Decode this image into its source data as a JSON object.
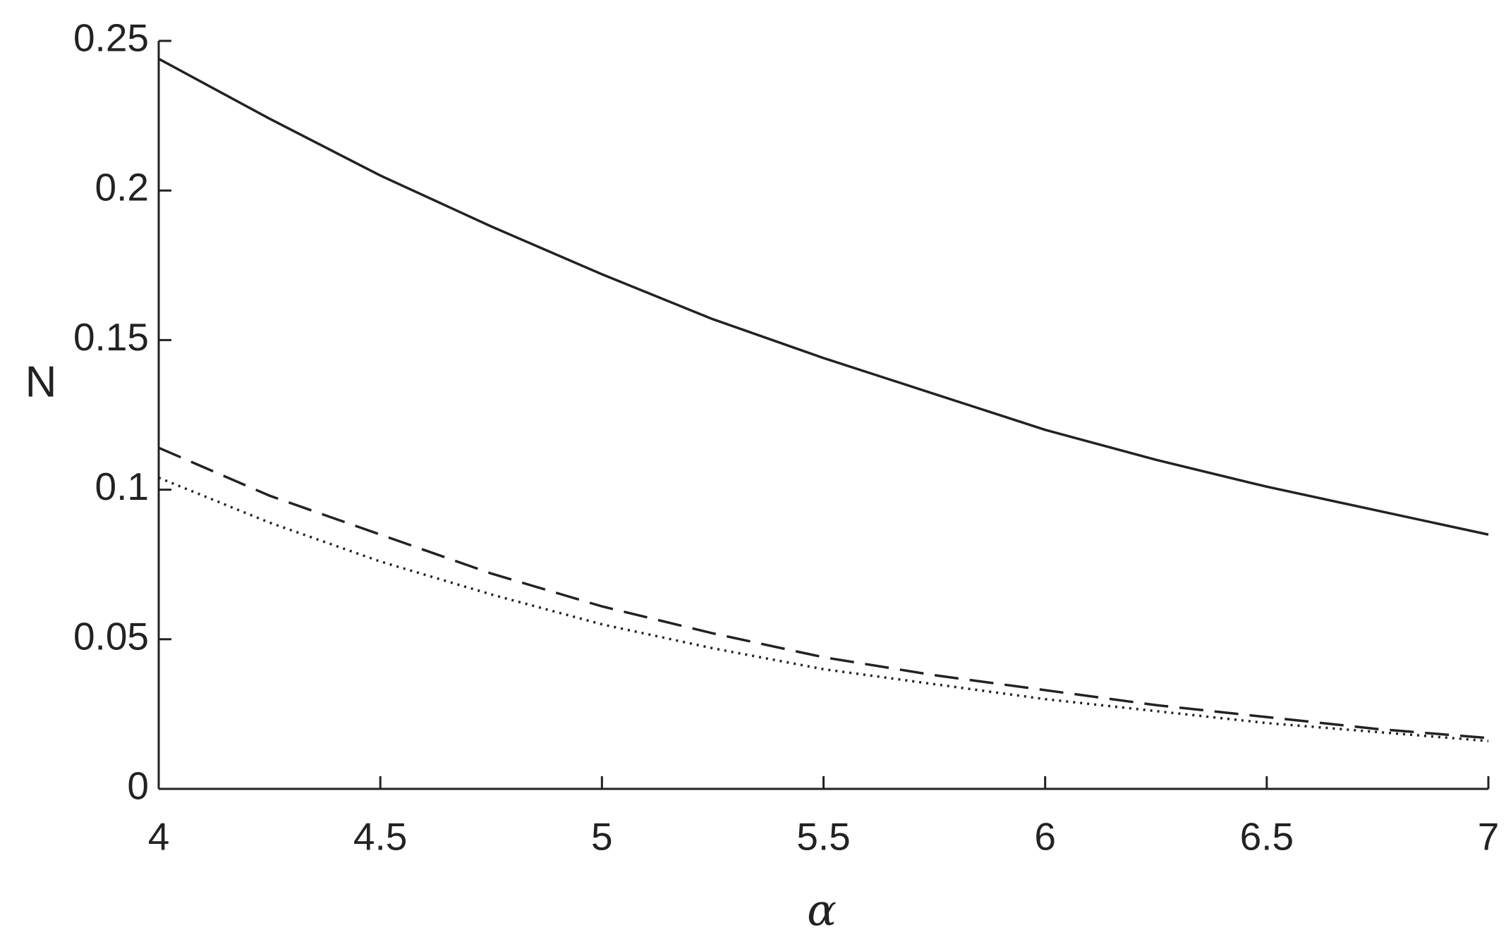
{
  "chart_data": {
    "type": "line",
    "x_label": "α",
    "y_label": "N",
    "x": [
      4,
      4.25,
      4.5,
      4.75,
      5,
      5.25,
      5.5,
      5.75,
      6,
      6.25,
      6.5,
      6.75,
      7
    ],
    "series": [
      {
        "color": "#222222",
        "dash": "solid",
        "values": [
          0.244,
          0.224,
          0.205,
          0.188,
          0.172,
          0.157,
          0.144,
          0.132,
          0.12,
          0.11,
          0.101,
          0.093,
          0.085
        ]
      },
      {
        "color": "#222222",
        "dash": "dashed",
        "values": [
          0.114,
          0.098,
          0.085,
          0.072,
          0.061,
          0.052,
          0.044,
          0.038,
          0.033,
          0.028,
          0.024,
          0.02,
          0.017
        ]
      },
      {
        "color": "#222222",
        "dash": "dotted",
        "values": [
          0.104,
          0.089,
          0.076,
          0.065,
          0.055,
          0.047,
          0.04,
          0.035,
          0.03,
          0.026,
          0.022,
          0.019,
          0.016
        ]
      }
    ],
    "xlim": [
      4,
      7
    ],
    "xticks": [
      4,
      4.5,
      5,
      5.5,
      6,
      6.5,
      7
    ],
    "ylim": [
      0,
      0.25
    ],
    "yticks": [
      0,
      0.05,
      0.1,
      0.15,
      0.2,
      0.25
    ],
    "grid": false
  }
}
